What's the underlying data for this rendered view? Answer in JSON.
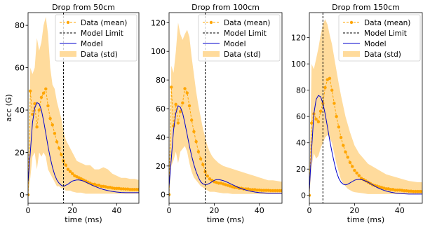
{
  "chart_data": [
    {
      "type": "line",
      "title": "Drop from 50cm",
      "xlabel": "time (ms)",
      "ylabel": "acc (G)",
      "xlim": [
        0,
        50
      ],
      "ylim": [
        -4,
        86
      ],
      "xticks": [
        0,
        20,
        40
      ],
      "yticks": [
        0,
        20,
        40,
        60,
        80
      ],
      "model_limit_x": 16,
      "grid": false,
      "legend_position": "top-right",
      "legend": [
        "Data (mean)",
        "Model Limit",
        "Model",
        "Data (std)"
      ],
      "series": [
        {
          "name": "Data (mean)",
          "x": [
            0,
            1,
            2,
            3,
            4,
            5,
            6,
            7,
            8,
            9,
            10,
            11,
            12,
            13,
            14,
            15,
            16,
            17,
            18,
            19,
            20,
            21,
            22,
            23,
            24,
            25,
            26,
            27,
            28,
            29,
            30,
            31,
            32,
            33,
            34,
            35,
            36,
            37,
            38,
            39,
            40,
            41,
            42,
            43,
            44,
            45,
            46,
            47,
            48,
            49,
            50
          ],
          "values": [
            0,
            49,
            38,
            43,
            32,
            40,
            46,
            48,
            50,
            42,
            36,
            33,
            29,
            25,
            22,
            19,
            16,
            14,
            12,
            11,
            10,
            9,
            8.5,
            8,
            7.5,
            7,
            6.5,
            6,
            5.5,
            5,
            5,
            4.5,
            4.5,
            4,
            4,
            3.8,
            3.5,
            3.5,
            3.2,
            3,
            3,
            3,
            2.8,
            2.8,
            2.7,
            2.7,
            2.5,
            2.5,
            2.5,
            2.5,
            2.5
          ]
        },
        {
          "name": "Model",
          "x": [
            0,
            1,
            2,
            3,
            4,
            5,
            6,
            7,
            8,
            9,
            10,
            11,
            12,
            13,
            14,
            15,
            16,
            17,
            18,
            19,
            20,
            21,
            22,
            23,
            24,
            25,
            26,
            27,
            28,
            29,
            30,
            32,
            34,
            36,
            38,
            40,
            42,
            44,
            46,
            48,
            50
          ],
          "values": [
            6,
            20,
            34,
            41,
            43.5,
            43,
            40,
            35,
            29,
            23,
            17.5,
            13,
            9.5,
            7,
            5.5,
            4.5,
            4,
            4.5,
            5,
            5.8,
            6.5,
            6.8,
            7,
            7,
            6.8,
            6.5,
            6,
            5.5,
            5,
            4.5,
            4,
            3.2,
            2.5,
            2,
            1.6,
            1.3,
            1.1,
            1,
            1,
            1,
            1
          ]
        },
        {
          "name": "Data (std)",
          "x": [
            0,
            1,
            2,
            3,
            4,
            5,
            6,
            7,
            8,
            9,
            10,
            11,
            12,
            13,
            14,
            15,
            16,
            17,
            18,
            19,
            20,
            22,
            24,
            26,
            28,
            30,
            32,
            34,
            36,
            38,
            40,
            42,
            44,
            46,
            48,
            50
          ],
          "upper": [
            2,
            60,
            57,
            60,
            74,
            68,
            72,
            80,
            84,
            76,
            60,
            52,
            50,
            44,
            40,
            36,
            30,
            26,
            24,
            22,
            20,
            16,
            15,
            14,
            14,
            12,
            12,
            13,
            12,
            10,
            9,
            8,
            8,
            7.5,
            7.5,
            7
          ],
          "lower": [
            0,
            8,
            18,
            20,
            12,
            20,
            18,
            20,
            18,
            12,
            10,
            8,
            6,
            4,
            4,
            3,
            3,
            2,
            2,
            2,
            1.5,
            1,
            1,
            0.5,
            0.5,
            0.5,
            0.5,
            0.5,
            0.5,
            0.5,
            0.5,
            0.5,
            0.5,
            0.5,
            0.5,
            0.5
          ]
        }
      ]
    },
    {
      "type": "line",
      "title": "Drop from 100cm",
      "xlabel": "time (ms)",
      "ylabel": "",
      "xlim": [
        0,
        50
      ],
      "ylim": [
        -6,
        127
      ],
      "xticks": [
        0,
        20,
        40
      ],
      "yticks": [
        0,
        20,
        40,
        60,
        80,
        100,
        120
      ],
      "model_limit_x": 16,
      "grid": false,
      "legend_position": "top-right",
      "legend": [
        "Data (mean)",
        "Model Limit",
        "Model",
        "Data (std)"
      ],
      "series": [
        {
          "name": "Data (mean)",
          "x": [
            0,
            1,
            2,
            3,
            4,
            5,
            6,
            7,
            8,
            9,
            10,
            11,
            12,
            13,
            14,
            15,
            16,
            17,
            18,
            19,
            20,
            21,
            22,
            23,
            24,
            25,
            26,
            27,
            28,
            29,
            30,
            31,
            32,
            33,
            34,
            35,
            36,
            37,
            38,
            39,
            40,
            41,
            42,
            43,
            44,
            45,
            46,
            47,
            48,
            49,
            50
          ],
          "values": [
            0,
            75,
            48,
            63,
            50,
            58,
            64,
            74,
            71,
            62,
            52,
            44,
            37,
            30,
            25,
            21,
            16,
            13,
            11,
            10,
            9,
            8.5,
            8,
            8,
            7.5,
            7,
            6.5,
            6,
            5.5,
            5,
            5,
            4.5,
            4.5,
            4,
            4,
            4,
            3.5,
            3.5,
            3.5,
            3.2,
            3.2,
            3,
            3,
            3,
            3,
            2.8,
            2.8,
            2.8,
            2.8,
            2.8,
            2.8
          ]
        },
        {
          "name": "Model",
          "x": [
            0,
            1,
            2,
            3,
            4,
            5,
            6,
            7,
            8,
            9,
            10,
            11,
            12,
            13,
            14,
            15,
            16,
            17,
            18,
            19,
            20,
            21,
            22,
            23,
            24,
            25,
            26,
            27,
            28,
            29,
            30,
            32,
            34,
            36,
            38,
            40,
            42,
            44,
            46,
            48,
            50
          ],
          "values": [
            6,
            25,
            45,
            57,
            62,
            61,
            57,
            50,
            42,
            34,
            27,
            21,
            16,
            12,
            9,
            7.5,
            7,
            7.2,
            8,
            9,
            10,
            10.5,
            10.5,
            10.2,
            9.8,
            9.2,
            8.5,
            7.8,
            7,
            6.3,
            5.5,
            4.2,
            3.2,
            2.4,
            1.8,
            1.4,
            1.2,
            1,
            1,
            1,
            1
          ]
        },
        {
          "name": "Data (std)",
          "x": [
            0,
            1,
            2,
            3,
            4,
            5,
            6,
            7,
            8,
            9,
            10,
            11,
            12,
            13,
            14,
            15,
            16,
            17,
            18,
            19,
            20,
            22,
            24,
            26,
            28,
            30,
            32,
            34,
            36,
            38,
            40,
            42,
            44,
            46,
            48,
            50
          ],
          "upper": [
            3,
            90,
            85,
            100,
            120,
            112,
            108,
            112,
            115,
            110,
            96,
            84,
            72,
            62,
            54,
            46,
            40,
            34,
            30,
            27,
            25,
            22,
            20,
            19,
            18,
            17,
            16,
            15,
            14,
            13,
            12,
            11,
            10,
            10,
            9.5,
            9
          ],
          "lower": [
            0,
            20,
            24,
            30,
            22,
            30,
            32,
            34,
            30,
            22,
            16,
            12,
            10,
            8,
            6,
            5,
            4,
            3,
            2,
            2,
            2,
            1.5,
            1,
            1,
            0.5,
            0.5,
            0.5,
            0.5,
            0.5,
            0.5,
            0.5,
            0.5,
            0.5,
            0.5,
            0.5,
            0.5
          ]
        }
      ]
    },
    {
      "type": "line",
      "title": "Drop from 150cm",
      "xlabel": "time (ms)",
      "ylabel": "",
      "xlim": [
        0,
        50
      ],
      "ylim": [
        -6,
        139
      ],
      "xticks": [
        0,
        20,
        40
      ],
      "yticks": [
        0,
        20,
        40,
        60,
        80,
        100,
        120
      ],
      "model_limit_x": 6,
      "grid": false,
      "legend_position": "top-right",
      "legend": [
        "Data (mean)",
        "Model Limit",
        "Model",
        "Data (std)"
      ],
      "series": [
        {
          "name": "Data (mean)",
          "x": [
            0,
            1,
            2,
            3,
            4,
            5,
            6,
            7,
            8,
            9,
            10,
            11,
            12,
            13,
            14,
            15,
            16,
            17,
            18,
            19,
            20,
            21,
            22,
            23,
            24,
            25,
            26,
            27,
            28,
            29,
            30,
            31,
            32,
            33,
            34,
            35,
            36,
            37,
            38,
            39,
            40,
            41,
            42,
            43,
            44,
            45,
            46,
            47,
            48,
            49,
            50
          ],
          "values": [
            0,
            55,
            62,
            58,
            56,
            64,
            70,
            82,
            88,
            89,
            80,
            70,
            60,
            52,
            44,
            38,
            33,
            29,
            25,
            22,
            19,
            17,
            15,
            13,
            12,
            11,
            10,
            9,
            8,
            7.5,
            7,
            6.5,
            6,
            5.5,
            5,
            5,
            4.5,
            4.5,
            4,
            4,
            4,
            3.8,
            3.5,
            3.5,
            3.2,
            3.2,
            3,
            3,
            3,
            3,
            3
          ]
        },
        {
          "name": "Model",
          "x": [
            0,
            1,
            2,
            3,
            4,
            5,
            6,
            7,
            8,
            9,
            10,
            11,
            12,
            13,
            14,
            15,
            16,
            17,
            18,
            19,
            20,
            21,
            22,
            23,
            24,
            25,
            26,
            27,
            28,
            29,
            30,
            32,
            34,
            36,
            38,
            40,
            42,
            44,
            46,
            48,
            50
          ],
          "values": [
            4,
            35,
            62,
            73,
            76,
            75,
            70,
            62,
            52,
            42,
            33,
            25,
            18,
            13,
            10,
            8.5,
            8,
            8.5,
            9.5,
            10.5,
            11.5,
            12,
            12.2,
            12,
            11.5,
            10.8,
            10,
            9,
            8,
            7,
            6,
            4.5,
            3.3,
            2.5,
            1.8,
            1.4,
            1.2,
            1,
            1,
            1,
            1
          ]
        },
        {
          "name": "Data (std)",
          "x": [
            0,
            1,
            2,
            3,
            4,
            5,
            6,
            7,
            8,
            9,
            10,
            11,
            12,
            13,
            14,
            15,
            16,
            17,
            18,
            19,
            20,
            22,
            24,
            26,
            28,
            30,
            32,
            34,
            36,
            38,
            40,
            42,
            44,
            46,
            48,
            50
          ],
          "upper": [
            2,
            100,
            96,
            104,
            112,
            122,
            130,
            134,
            130,
            122,
            115,
            105,
            95,
            85,
            76,
            68,
            60,
            54,
            48,
            43,
            38,
            32,
            28,
            24,
            22,
            20,
            18,
            16,
            15,
            14,
            13,
            12,
            11,
            10.5,
            10,
            10
          ],
          "lower": [
            0,
            22,
            32,
            28,
            30,
            36,
            40,
            44,
            46,
            44,
            40,
            32,
            24,
            18,
            12,
            9,
            7,
            5,
            4,
            3,
            2.5,
            2,
            1.5,
            1,
            1,
            1,
            1,
            1,
            1,
            1,
            1,
            1,
            1,
            1,
            1,
            1
          ]
        }
      ]
    }
  ]
}
